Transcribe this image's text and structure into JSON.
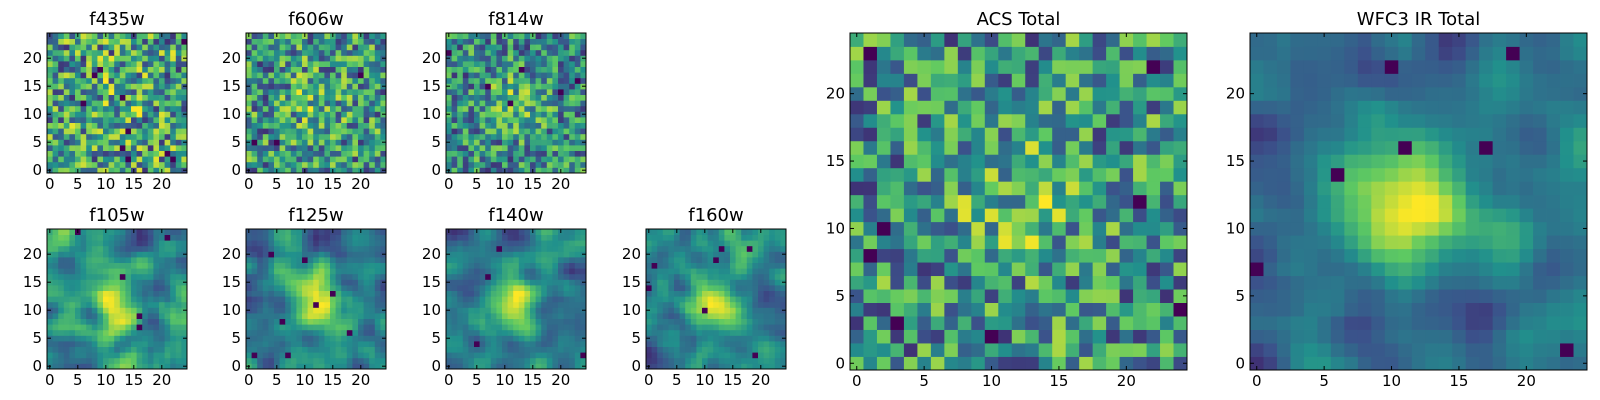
{
  "figure": {
    "colormap": [
      "#440154",
      "#3b528b",
      "#21918c",
      "#5ec962",
      "#fde725"
    ]
  },
  "chart_data": [
    {
      "type": "heatmap",
      "title": "f435w",
      "grid_size": 25,
      "x_ticks": [
        0,
        5,
        10,
        15,
        20
      ],
      "y_ticks": [
        0,
        5,
        10,
        15,
        20
      ],
      "seed": 435,
      "smoothness": 0,
      "center_boost": 0.1
    },
    {
      "type": "heatmap",
      "title": "f606w",
      "grid_size": 25,
      "x_ticks": [
        0,
        5,
        10,
        15,
        20
      ],
      "y_ticks": [
        0,
        5,
        10,
        15,
        20
      ],
      "seed": 606,
      "smoothness": 0,
      "center_boost": 0.2
    },
    {
      "type": "heatmap",
      "title": "f814w",
      "grid_size": 25,
      "x_ticks": [
        0,
        5,
        10,
        15,
        20
      ],
      "y_ticks": [
        0,
        5,
        10,
        15,
        20
      ],
      "seed": 814,
      "smoothness": 0,
      "center_boost": 0.35
    },
    {
      "type": "heatmap",
      "title": "f105w",
      "grid_size": 25,
      "x_ticks": [
        0,
        5,
        10,
        15,
        20
      ],
      "y_ticks": [
        0,
        5,
        10,
        15,
        20
      ],
      "seed": 105,
      "smoothness": 2,
      "center_boost": 0.3
    },
    {
      "type": "heatmap",
      "title": "f125w",
      "grid_size": 25,
      "x_ticks": [
        0,
        5,
        10,
        15,
        20
      ],
      "y_ticks": [
        0,
        5,
        10,
        15,
        20
      ],
      "seed": 125,
      "smoothness": 2,
      "center_boost": 0.35
    },
    {
      "type": "heatmap",
      "title": "f140w",
      "grid_size": 25,
      "x_ticks": [
        0,
        5,
        10,
        15,
        20
      ],
      "y_ticks": [
        0,
        5,
        10,
        15,
        20
      ],
      "seed": 140,
      "smoothness": 2,
      "center_boost": 0.35
    },
    {
      "type": "heatmap",
      "title": "f160w",
      "grid_size": 25,
      "x_ticks": [
        0,
        5,
        10,
        15,
        20
      ],
      "y_ticks": [
        0,
        5,
        10,
        15,
        20
      ],
      "seed": 160,
      "smoothness": 2,
      "center_boost": 0.3
    },
    {
      "type": "heatmap",
      "title": "ACS Total",
      "grid_size": 25,
      "x_ticks": [
        0,
        5,
        10,
        15,
        20
      ],
      "y_ticks": [
        0,
        5,
        10,
        15,
        20
      ],
      "seed": 777,
      "smoothness": 0,
      "center_boost": 0.25
    },
    {
      "type": "heatmap",
      "title": "WFC3 IR Total",
      "grid_size": 25,
      "x_ticks": [
        0,
        5,
        10,
        15,
        20
      ],
      "y_ticks": [
        0,
        5,
        10,
        15,
        20
      ],
      "seed": 999,
      "smoothness": 2,
      "center_boost": 0.55
    }
  ]
}
